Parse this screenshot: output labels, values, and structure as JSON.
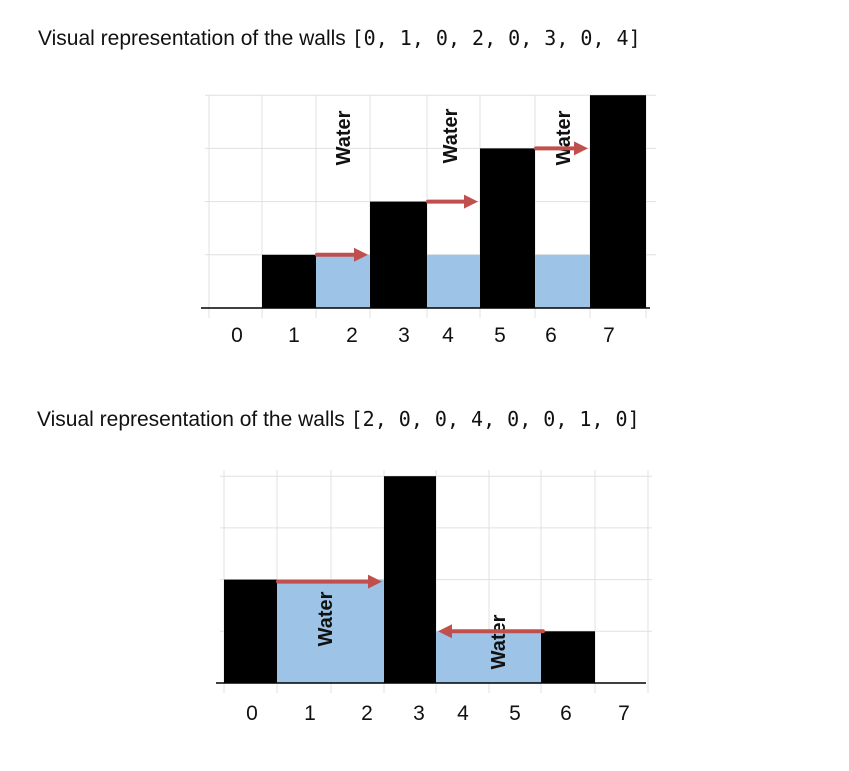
{
  "diagrams": [
    {
      "caption_prefix": "Visual representation of the walls",
      "caption_array": "[0, 1, 0, 2, 0, 3, 0, 4]",
      "walls": [
        0,
        1,
        0,
        2,
        0,
        3,
        0,
        4
      ],
      "water": [
        0,
        0,
        1,
        0,
        1,
        0,
        1,
        0
      ],
      "water_label": "Water",
      "x_ticks": [
        "0",
        "1",
        "2",
        "3",
        "4",
        "5",
        "6",
        "7"
      ],
      "arrows": [
        {
          "from": 2,
          "to": 3,
          "level": 1,
          "direction": "right"
        },
        {
          "from": 4,
          "to": 5,
          "level": 2,
          "direction": "right"
        },
        {
          "from": 6,
          "to": 7,
          "level": 3,
          "direction": "right"
        }
      ]
    },
    {
      "caption_prefix": "Visual representation of the walls",
      "caption_array": "[2, 0, 0, 4, 0, 0, 1, 0]",
      "walls": [
        2,
        0,
        0,
        4,
        0,
        0,
        1,
        0
      ],
      "water": [
        0,
        2,
        2,
        0,
        1,
        1,
        0,
        0
      ],
      "water_label": "Water",
      "x_ticks": [
        "0",
        "1",
        "2",
        "3",
        "4",
        "5",
        "6",
        "7"
      ],
      "arrows": [
        {
          "from": 1,
          "to": 3,
          "level": 2,
          "direction": "right"
        },
        {
          "from": 4,
          "to": 6,
          "level": 1,
          "direction": "left"
        }
      ]
    }
  ],
  "colors": {
    "wall": "#000000",
    "water": "#9dc3e6",
    "arrow": "#c0504d",
    "grid": "#e0e0e0",
    "axis": "#000000"
  }
}
